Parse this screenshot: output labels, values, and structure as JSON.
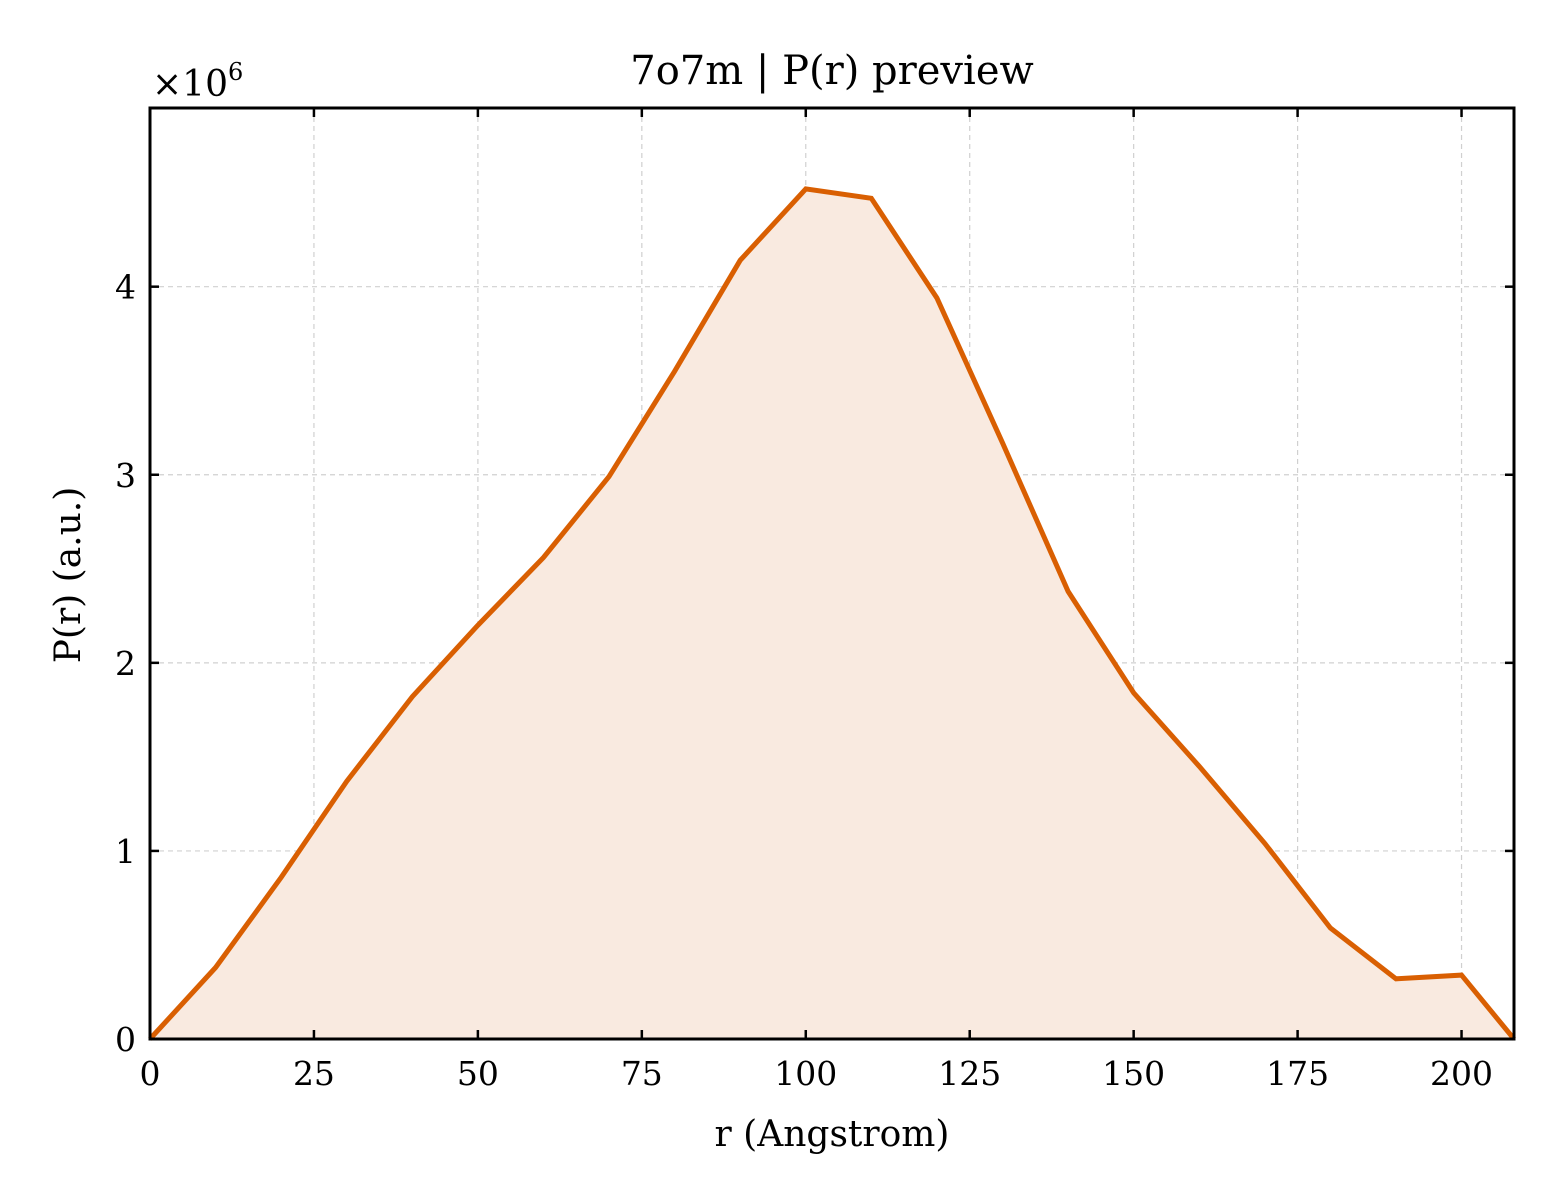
{
  "chart_data": {
    "type": "area",
    "title": "7o7m | P(r) preview",
    "xlabel": "r (Angstrom)",
    "ylabel": "P(r) (a.u.)",
    "y_scale_label": "×10",
    "y_scale_exponent": "6",
    "xlim": [
      0,
      208
    ],
    "ylim": [
      0,
      4.95
    ],
    "x_ticks": [
      0,
      25,
      50,
      75,
      100,
      125,
      150,
      175,
      200
    ],
    "x_tick_labels": [
      "0",
      "25",
      "50",
      "75",
      "100",
      "125",
      "150",
      "175",
      "200"
    ],
    "y_ticks": [
      0,
      1,
      2,
      3,
      4
    ],
    "y_tick_labels": [
      "0",
      "1",
      "2",
      "3",
      "4"
    ],
    "grid": true,
    "line_color": "#d95f02",
    "fill_color": "#f9eae0",
    "series": [
      {
        "x": [
          0,
          10,
          20,
          30,
          40,
          50,
          60,
          70,
          80,
          90,
          100,
          110,
          120,
          130,
          140,
          150,
          160,
          170,
          180,
          190,
          200,
          208
        ],
        "y": [
          0,
          0.38,
          0.86,
          1.37,
          1.82,
          2.2,
          2.56,
          2.99,
          3.55,
          4.14,
          4.52,
          4.47,
          3.94,
          3.17,
          2.38,
          1.84,
          1.45,
          1.04,
          0.59,
          0.32,
          0.34,
          0
        ]
      }
    ]
  }
}
